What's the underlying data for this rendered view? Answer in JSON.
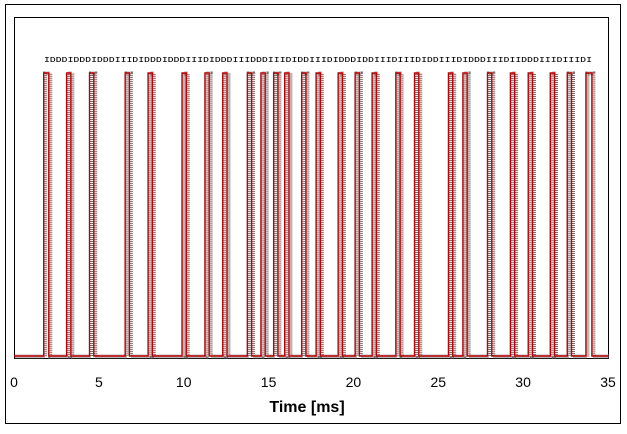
{
  "chart_data": {
    "type": "line",
    "title": "",
    "xlabel": "Time [ms]",
    "ylabel": "",
    "xlim": [
      0,
      35
    ],
    "ylim": [
      0,
      1.05
    ],
    "grid": false,
    "legend": "none",
    "x_ticks": [
      0,
      5,
      10,
      15,
      20,
      25,
      30,
      35
    ],
    "x_tick_labels": [
      "0",
      "5",
      "10",
      "15",
      "20",
      "25",
      "30",
      "35"
    ],
    "colors": {
      "trace": "#c00000",
      "trace_shadow": "#707070",
      "frame": "#000000",
      "background": "#ffffff"
    },
    "series": [
      {
        "x": [
          0,
          1.75,
          1.75,
          2.05,
          2.05,
          3.1,
          3.1,
          3.35,
          3.35,
          4.45,
          4.45,
          4.7,
          4.7,
          6.55,
          6.55,
          6.8,
          6.8,
          7.9,
          7.9,
          8.15,
          8.15,
          9.9,
          9.9,
          10.15,
          10.15,
          11.25,
          11.25,
          11.5,
          11.5,
          12.3,
          12.3,
          12.55,
          12.55,
          13.75,
          13.75,
          14.0,
          14.0,
          14.55,
          14.55,
          14.8,
          14.8,
          15.3,
          15.3,
          15.55,
          15.55,
          15.95,
          15.95,
          16.2,
          16.2,
          16.95,
          16.95,
          17.2,
          17.2,
          17.8,
          17.8,
          18.05,
          18.05,
          19.1,
          19.1,
          19.35,
          19.35,
          20.1,
          20.1,
          20.35,
          20.35,
          21.1,
          21.1,
          21.35,
          21.35,
          22.5,
          22.5,
          22.75,
          22.75,
          23.6,
          23.6,
          23.85,
          23.85,
          25.6,
          25.6,
          25.85,
          25.85,
          26.45,
          26.45,
          26.7,
          26.7,
          27.9,
          27.9,
          28.15,
          28.15,
          29.25,
          29.25,
          29.5,
          29.5,
          30.3,
          30.3,
          30.55,
          30.55,
          31.6,
          31.6,
          31.85,
          31.85,
          32.6,
          32.6,
          32.85,
          32.85,
          33.7,
          33.7,
          34.05,
          34.05,
          35
        ],
        "y": [
          0,
          0,
          1,
          1,
          0,
          0,
          1,
          1,
          0,
          0,
          1,
          1,
          0,
          0,
          1,
          1,
          0,
          0,
          1,
          1,
          0,
          0,
          1,
          1,
          0,
          0,
          1,
          1,
          0,
          0,
          1,
          1,
          0,
          0,
          1,
          1,
          0,
          0,
          1,
          1,
          0,
          0,
          1,
          1,
          0,
          0,
          1,
          1,
          0,
          0,
          1,
          1,
          0,
          0,
          1,
          1,
          0,
          0,
          1,
          1,
          0,
          0,
          1,
          1,
          0,
          0,
          1,
          1,
          0,
          0,
          1,
          1,
          0,
          0,
          1,
          1,
          0,
          0,
          1,
          1,
          0,
          0,
          1,
          1,
          0,
          0,
          1,
          1,
          0,
          0,
          1,
          1,
          0,
          0,
          1,
          1,
          0,
          0,
          1,
          1,
          0,
          0,
          1,
          1,
          0,
          0,
          1,
          1,
          0,
          0
        ]
      }
    ],
    "bit_labels": "IDDDIDDDIDDDIIIDIDDDIDDDIIIDIDDDIIIDDDIIIDIDDIIIDIDDDIDDIIIDIIIDIDDIIIDIDDDIIIDIIDDDIIIDIIIDI"
  }
}
